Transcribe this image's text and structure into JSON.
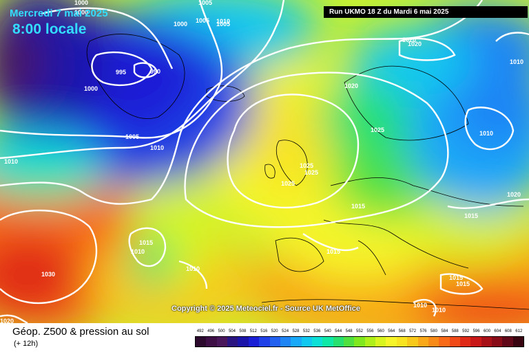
{
  "header": {
    "date": "Mercredi 7 mai 2025",
    "time": "8:00 locale",
    "run": "Run UKMO 18 Z du Mardi 6 mai 2025"
  },
  "map": {
    "copyright": "Copyright © 2025 Meteociel.fr - Source UK MetOffice",
    "isobar_labels": [
      "1000",
      "1005",
      "1000",
      "1005",
      "1005",
      "1000",
      "995",
      "990",
      "1000",
      "1005",
      "1010",
      "1010",
      "1020",
      "1020",
      "1020",
      "1010",
      "1010",
      "1025",
      "1025",
      "1025",
      "1025",
      "1020",
      "1015",
      "1015",
      "1020",
      "1010",
      "1015",
      "1010",
      "1010",
      "1030",
      "1020",
      "1015",
      "1015",
      "1010",
      "1015",
      "1010"
    ],
    "colors": {
      "low": "#1a1fd6",
      "high": "#ff6a1a",
      "isobar": "#ffffff"
    }
  },
  "footer": {
    "title": "Géop. Z500 & pression au sol",
    "subtitle": "(+ 12h)"
  },
  "legend": {
    "labels": [
      "492",
      "496",
      "500",
      "504",
      "508",
      "512",
      "516",
      "520",
      "524",
      "528",
      "532",
      "536",
      "540",
      "544",
      "548",
      "552",
      "556",
      "560",
      "564",
      "568",
      "572",
      "576",
      "580",
      "584",
      "588",
      "592",
      "596",
      "600",
      "604",
      "608",
      "612"
    ],
    "colors": [
      "#2b0a2e",
      "#3d0f45",
      "#4a165a",
      "#2a1480",
      "#1a14a8",
      "#1a1fd6",
      "#1f40e6",
      "#2260f0",
      "#1f85f5",
      "#1aa8f8",
      "#12c8f0",
      "#0ee0d8",
      "#10e8a8",
      "#28e070",
      "#50e040",
      "#80e81f",
      "#b0f01a",
      "#d8f520",
      "#f5f52a",
      "#f8e420",
      "#f8c81a",
      "#f8a818",
      "#f88a18",
      "#f86a18",
      "#f04a18",
      "#e02a18",
      "#c81818",
      "#a81018",
      "#880c18",
      "#600818",
      "#380410"
    ]
  }
}
